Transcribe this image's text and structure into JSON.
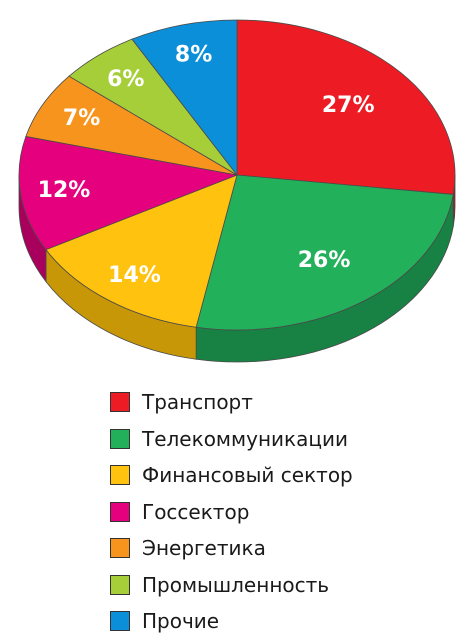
{
  "chart_data": {
    "type": "pie",
    "style": "3d",
    "categories": [
      "Транспорт",
      "Телекоммуникации",
      "Финансовый сектор",
      "Госсектор",
      "Энергетика",
      "Промышленность",
      "Прочие"
    ],
    "values": [
      27,
      26,
      14,
      12,
      7,
      6,
      8
    ],
    "data_labels": [
      "27%",
      "26%",
      "14%",
      "12%",
      "7%",
      "6%",
      "8%"
    ],
    "colors": [
      "#ED1C24",
      "#22B05A",
      "#FFC20E",
      "#E5007E",
      "#F7941D",
      "#A5CE39",
      "#0B8FD8"
    ],
    "side_colors": [
      "#B3141A",
      "#178243",
      "#C79708",
      "#A8005C",
      "#BE6F12",
      "#7C9C27",
      "#08679D"
    ],
    "legend_position": "bottom"
  },
  "legend": {
    "items": [
      {
        "label": "Транспорт",
        "color": "#ED1C24"
      },
      {
        "label": "Телекоммуникации",
        "color": "#22B05A"
      },
      {
        "label": "Финансовый сектор",
        "color": "#FFC20E"
      },
      {
        "label": "Госсектор",
        "color": "#E5007E"
      },
      {
        "label": "Энергетика",
        "color": "#F7941D"
      },
      {
        "label": "Промышленность",
        "color": "#A5CE39"
      },
      {
        "label": "Прочие",
        "color": "#0B8FD8"
      }
    ]
  }
}
